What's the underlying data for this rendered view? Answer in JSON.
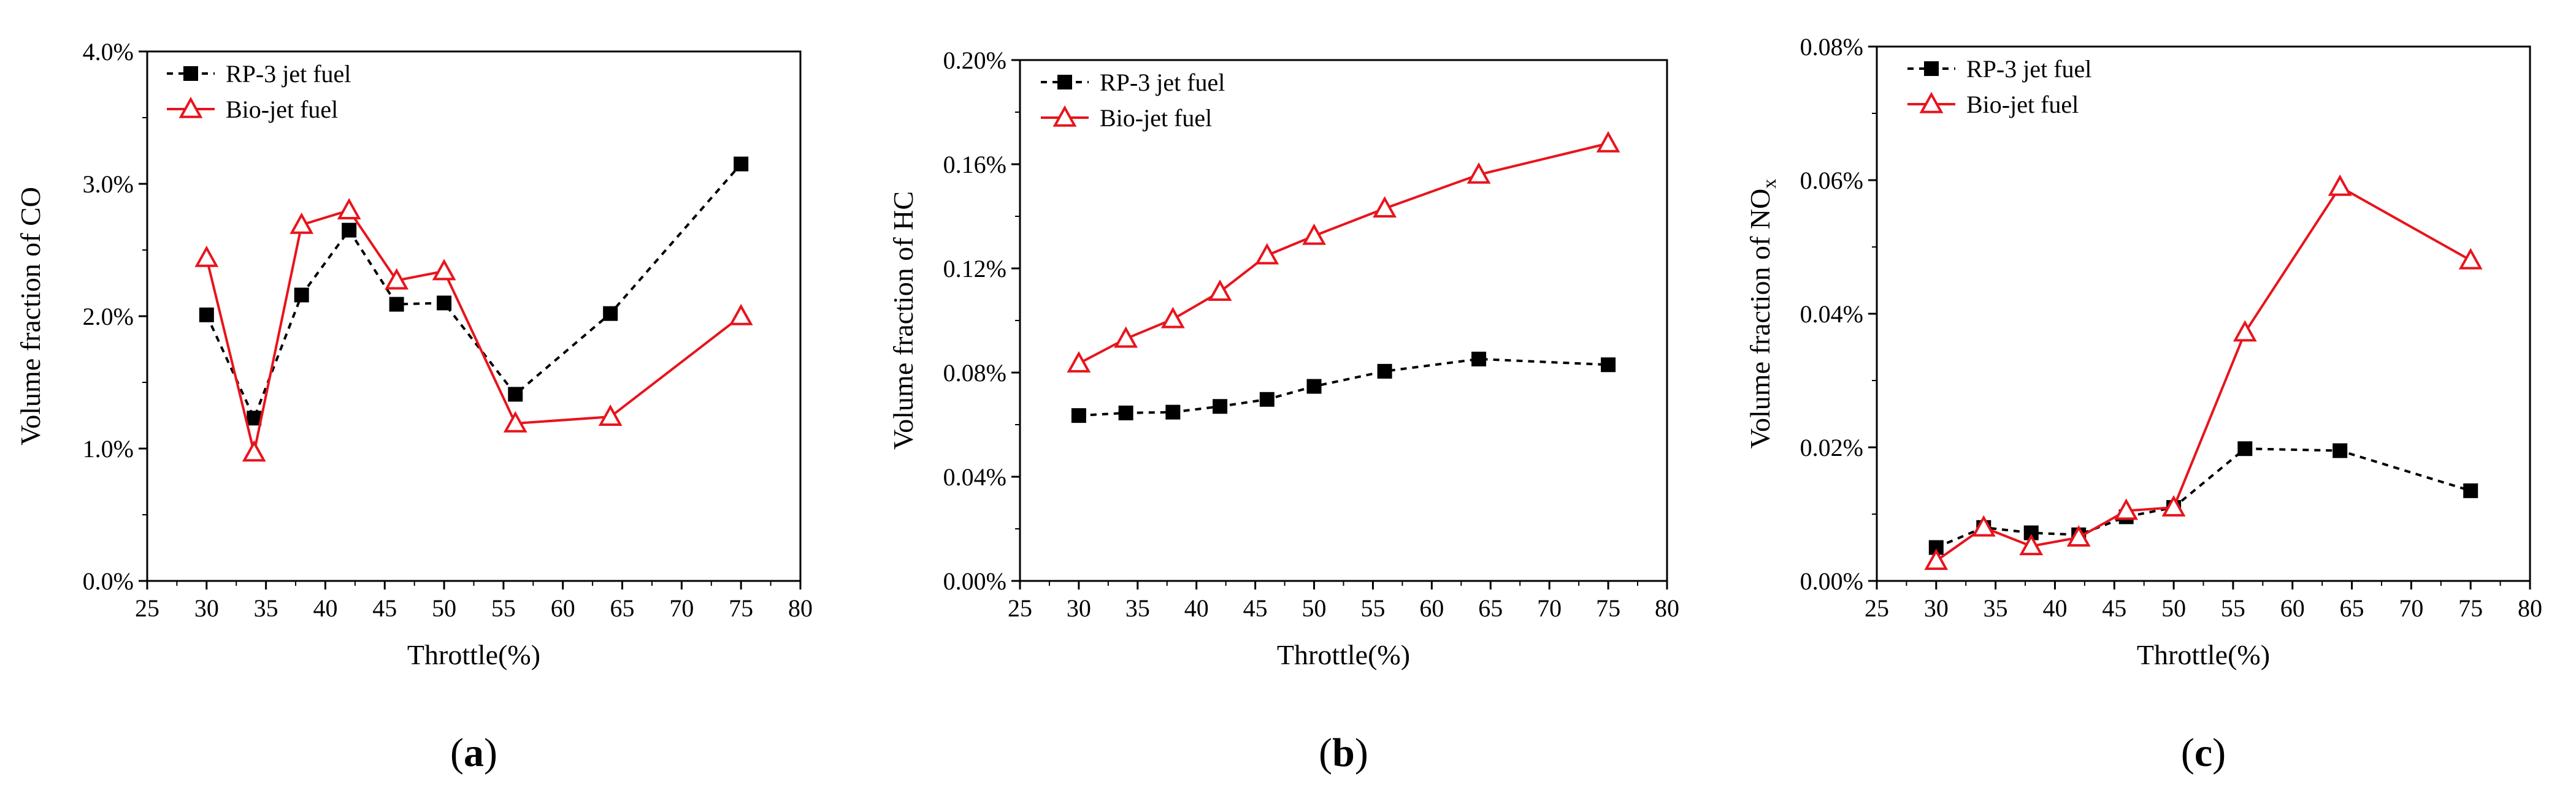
{
  "figure": {
    "colors": {
      "series_rp3": "#000000",
      "series_bio": "#e8141c",
      "axis": "#000000"
    },
    "icons": {
      "series_rp3_marker": "filled-square-marker-icon",
      "series_bio_marker": "open-triangle-marker-icon"
    }
  },
  "chart_data": [
    {
      "type": "line",
      "panel_label": "a",
      "xlabel": "Throttle(%)",
      "ylabel": "Volume fraction of CO",
      "ylabel_subscript": "",
      "xlim": [
        25,
        80
      ],
      "ylim": [
        0.0,
        4.0
      ],
      "xticks": [
        25,
        30,
        35,
        40,
        45,
        50,
        55,
        60,
        65,
        70,
        75,
        80
      ],
      "yticks": [
        0.0,
        1.0,
        2.0,
        3.0,
        4.0
      ],
      "ytick_labels": [
        "0.0%",
        "1.0%",
        "2.0%",
        "3.0%",
        "4.0%"
      ],
      "legend_position": "top-left",
      "series": [
        {
          "name": "RP-3 jet fuel",
          "marker": "square",
          "linestyle": "dashed",
          "x": [
            30,
            34,
            38,
            42,
            46,
            50,
            56,
            64,
            75
          ],
          "values": [
            2.01,
            1.23,
            2.16,
            2.65,
            2.09,
            2.1,
            1.41,
            2.02,
            3.15
          ]
        },
        {
          "name": "Bio-jet fuel",
          "marker": "triangle",
          "linestyle": "solid",
          "x": [
            30,
            34,
            38,
            42,
            46,
            50,
            56,
            64,
            75
          ],
          "values": [
            2.44,
            0.97,
            2.69,
            2.8,
            2.27,
            2.34,
            1.19,
            1.24,
            2.0
          ]
        }
      ]
    },
    {
      "type": "line",
      "panel_label": "b",
      "xlabel": "Throttle(%)",
      "ylabel": "Volume fraction of HC",
      "ylabel_subscript": "",
      "xlim": [
        25,
        80
      ],
      "ylim": [
        0.0,
        0.2
      ],
      "xticks": [
        25,
        30,
        35,
        40,
        45,
        50,
        55,
        60,
        65,
        70,
        75,
        80
      ],
      "yticks": [
        0.0,
        0.04,
        0.08,
        0.12,
        0.16,
        0.2
      ],
      "ytick_labels": [
        "0.00%",
        "0.04%",
        "0.08%",
        "0.12%",
        "0.16%",
        "0.20%"
      ],
      "legend_position": "top-left",
      "series": [
        {
          "name": "RP-3 jet fuel",
          "marker": "square",
          "linestyle": "dashed",
          "x": [
            30,
            34,
            38,
            42,
            46,
            50,
            56,
            64,
            75
          ],
          "values": [
            0.0635,
            0.0645,
            0.0648,
            0.067,
            0.0697,
            0.0747,
            0.0805,
            0.0852,
            0.083
          ]
        },
        {
          "name": "Bio-jet fuel",
          "marker": "triangle",
          "linestyle": "solid",
          "x": [
            30,
            34,
            38,
            42,
            46,
            50,
            56,
            64,
            75
          ],
          "values": [
            0.0835,
            0.093,
            0.1005,
            0.111,
            0.125,
            0.1325,
            0.143,
            0.156,
            0.168
          ]
        }
      ]
    },
    {
      "type": "line",
      "panel_label": "c",
      "xlabel": "Throttle(%)",
      "ylabel": "Volume fraction of NO",
      "ylabel_subscript": "x",
      "xlim": [
        25,
        80
      ],
      "ylim": [
        0.0,
        0.08
      ],
      "xticks": [
        25,
        30,
        35,
        40,
        45,
        50,
        55,
        60,
        65,
        70,
        75,
        80
      ],
      "yticks": [
        0.0,
        0.02,
        0.04,
        0.06,
        0.08
      ],
      "ytick_labels": [
        "0.00%",
        "0.02%",
        "0.04%",
        "0.06%",
        "0.08%"
      ],
      "legend_position": "top-left",
      "series": [
        {
          "name": "RP-3 jet fuel",
          "marker": "square",
          "linestyle": "dashed",
          "x": [
            30,
            34,
            38,
            42,
            46,
            50,
            56,
            64,
            75
          ],
          "values": [
            0.005,
            0.008,
            0.0072,
            0.0069,
            0.0096,
            0.011,
            0.0198,
            0.0195,
            0.0135
          ]
        },
        {
          "name": "Bio-jet fuel",
          "marker": "triangle",
          "linestyle": "solid",
          "x": [
            30,
            34,
            38,
            42,
            46,
            50,
            56,
            64,
            75
          ],
          "values": [
            0.003,
            0.008,
            0.0052,
            0.0065,
            0.0105,
            0.011,
            0.0372,
            0.059,
            0.048
          ]
        }
      ]
    }
  ]
}
